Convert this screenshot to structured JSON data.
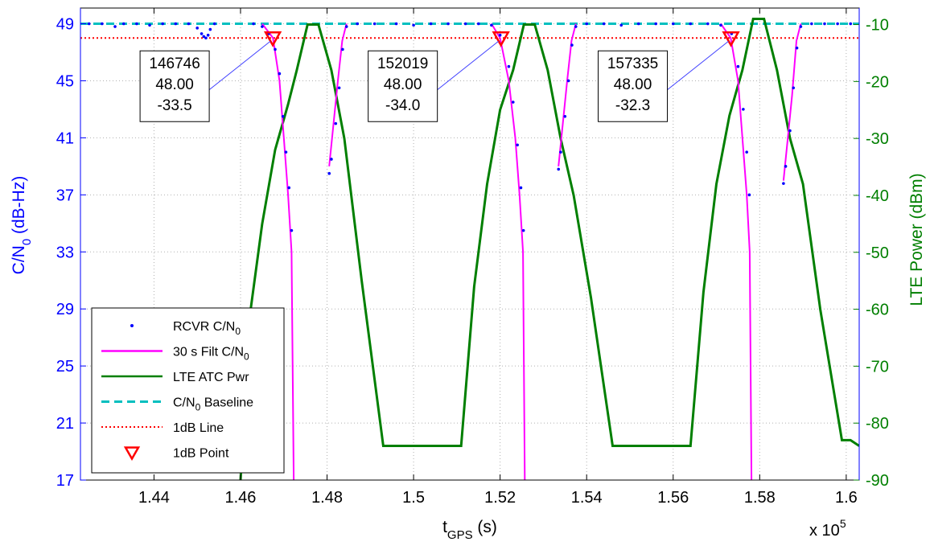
{
  "chart_data": {
    "type": "line",
    "title": "",
    "x_axis": {
      "label_main": "t",
      "label_sub": "GPS",
      "label_unit": " (s)",
      "range": [
        142300,
        160300
      ],
      "ticks": [
        144000,
        146000,
        148000,
        150000,
        152000,
        154000,
        156000,
        158000,
        160000
      ],
      "tick_labels": [
        "1.44",
        "1.46",
        "1.48",
        "1.5",
        "1.52",
        "1.54",
        "1.56",
        "1.58",
        "1.6"
      ],
      "multiplier_text": "x 10",
      "multiplier_exp": "5"
    },
    "y_axis_left": {
      "label_main": "C/N",
      "label_sub": "0",
      "label_unit": " (dB-Hz)",
      "range": [
        17,
        50.1
      ],
      "ticks": [
        17,
        21,
        25,
        29,
        33,
        37,
        41,
        45,
        49
      ],
      "color": "#0000ff"
    },
    "y_axis_right": {
      "label": "LTE Power (dBm)",
      "range": [
        -90,
        -7.1
      ],
      "ticks": [
        -90,
        -80,
        -70,
        -60,
        -50,
        -40,
        -30,
        -20,
        -10
      ],
      "color": "#007f00"
    },
    "grid": true,
    "legend": {
      "placement": "bottom-left",
      "entries": [
        {
          "main": "RCVR C/N",
          "sub": "0",
          "rest": "",
          "kind": "dots",
          "color": "#0000ff"
        },
        {
          "main": "30 s Filt C/N",
          "sub": "0",
          "rest": "",
          "kind": "line",
          "color": "#ff00ff"
        },
        {
          "main": "LTE ATC Pwr",
          "sub": "",
          "rest": "",
          "kind": "line",
          "color": "#007f00"
        },
        {
          "main": "C/N",
          "sub": "0",
          "rest": " Baseline",
          "kind": "dashed",
          "color": "#00bfbf"
        },
        {
          "main": "1dB Line",
          "sub": "",
          "rest": "",
          "kind": "dotted",
          "color": "#ff0000"
        },
        {
          "main": "1dB Point",
          "sub": "",
          "rest": "",
          "kind": "triangle",
          "color": "#ff0000"
        }
      ]
    },
    "series": [
      {
        "name": "C/N0 Baseline",
        "axis": "left",
        "color": "#00bfbf",
        "style": "dashed",
        "x": [
          142300,
          160300
        ],
        "y": [
          49,
          49
        ]
      },
      {
        "name": "1dB Line",
        "axis": "left",
        "color": "#ff0000",
        "style": "dotted",
        "x": [
          142300,
          160300
        ],
        "y": [
          48,
          48
        ]
      },
      {
        "name": "LTE ATC Pwr",
        "axis": "right",
        "color": "#007f00",
        "style": "solid",
        "x": [
          146000,
          146200,
          146500,
          146800,
          147100,
          147300,
          147550,
          147800,
          148100,
          148400,
          148800,
          149300,
          151100,
          151400,
          151700,
          152000,
          152300,
          152550,
          152800,
          153100,
          153400,
          153700,
          154100,
          154600,
          156400,
          156700,
          157000,
          157300,
          157600,
          157850,
          158100,
          158400,
          158700,
          159000,
          159400,
          159900,
          160100,
          160300
        ],
        "y": [
          -90,
          -62,
          -45,
          -32,
          -24,
          -18,
          -10,
          -10,
          -18,
          -30,
          -55,
          -84,
          -84,
          -56,
          -38,
          -25,
          -18,
          -10,
          -10,
          -18,
          -30,
          -40,
          -58,
          -84,
          -84,
          -57,
          -38,
          -26,
          -18,
          -9,
          -9,
          -18,
          -30,
          -38,
          -60,
          -83,
          -83,
          -84
        ]
      },
      {
        "name": "30 s Filt C/N0",
        "axis": "left",
        "color": "#ff00ff",
        "style": "solid",
        "segments": [
          {
            "x": [
              146500,
              146750,
              146900,
              147000,
              147100,
              147180,
              147230
            ],
            "y": [
              49,
              48,
              45,
              41,
              37,
              33,
              17
            ]
          },
          {
            "x": [
              148050,
              148150,
              148250,
              148350,
              148450
            ],
            "y": [
              39,
              42,
              45,
              47.8,
              49
            ]
          },
          {
            "x": [
              151800,
              152000,
              152200,
              152350,
              152450,
              152530,
              152570
            ],
            "y": [
              49,
              48,
              45,
              41,
              37,
              33,
              17
            ]
          },
          {
            "x": [
              153350,
              153450,
              153550,
              153650,
              153750
            ],
            "y": [
              39,
              42,
              45,
              47.8,
              49
            ]
          },
          {
            "x": [
              157100,
              157330,
              157500,
              157600,
              157700,
              157770,
              157810
            ],
            "y": [
              49,
              48,
              45,
              41,
              37,
              33,
              17
            ]
          },
          {
            "x": [
              158550,
              158650,
              158750,
              158850,
              158950
            ],
            "y": [
              38,
              41,
              44,
              47.8,
              49
            ]
          }
        ]
      },
      {
        "name": "RCVR C/N0",
        "axis": "left",
        "color": "#0000ff",
        "style": "dots",
        "x": [
          142500,
          142800,
          143100,
          143300,
          143600,
          143900,
          144200,
          144500,
          144800,
          145000,
          145100,
          145150,
          145200,
          145250,
          145300,
          145400,
          146300,
          146500,
          146650,
          146800,
          146900,
          146980,
          147050,
          147120,
          147180,
          148050,
          148100,
          148200,
          148280,
          148360,
          148450,
          148700,
          149100,
          149600,
          150000,
          150400,
          150800,
          151200,
          151500,
          151800,
          152000,
          152200,
          152300,
          152400,
          152480,
          152540,
          153350,
          153400,
          153500,
          153580,
          153660,
          153750,
          154000,
          154400,
          154800,
          155200,
          155600,
          156000,
          156400,
          156800,
          157100,
          157350,
          157500,
          157620,
          157700,
          157760,
          158550,
          158600,
          158700,
          158780,
          158860,
          158950,
          159200,
          159500,
          159800,
          160100
        ],
        "y": [
          49,
          49,
          48.8,
          49,
          49,
          48.9,
          49,
          49,
          49,
          48.7,
          48.3,
          48.1,
          48,
          48.2,
          48.6,
          49,
          49,
          48.8,
          48.3,
          47.2,
          45.5,
          42.5,
          40,
          37.5,
          34.5,
          38.5,
          39.5,
          42,
          44.5,
          47.2,
          48.8,
          49,
          49,
          49,
          48.9,
          49,
          49,
          49,
          49,
          48.9,
          48.2,
          46,
          43.5,
          40.5,
          37.5,
          34.5,
          38.8,
          40,
          42.5,
          45,
          47.5,
          48.8,
          49,
          49,
          48.9,
          49,
          49,
          49,
          49,
          49,
          48.9,
          48.3,
          46,
          43,
          40,
          37,
          37.8,
          39,
          41.5,
          44.5,
          47.3,
          48.8,
          49,
          49,
          49,
          49
        ]
      }
    ],
    "points_1dB": [
      {
        "x": 146746,
        "y": 48,
        "lines": [
          "146746",
          "48.00",
          "-33.5"
        ]
      },
      {
        "x": 152019,
        "y": 48,
        "lines": [
          "152019",
          "48.00",
          "-34.0"
        ]
      },
      {
        "x": 157335,
        "y": 48,
        "lines": [
          "157335",
          "48.00",
          "-32.3"
        ]
      }
    ]
  }
}
